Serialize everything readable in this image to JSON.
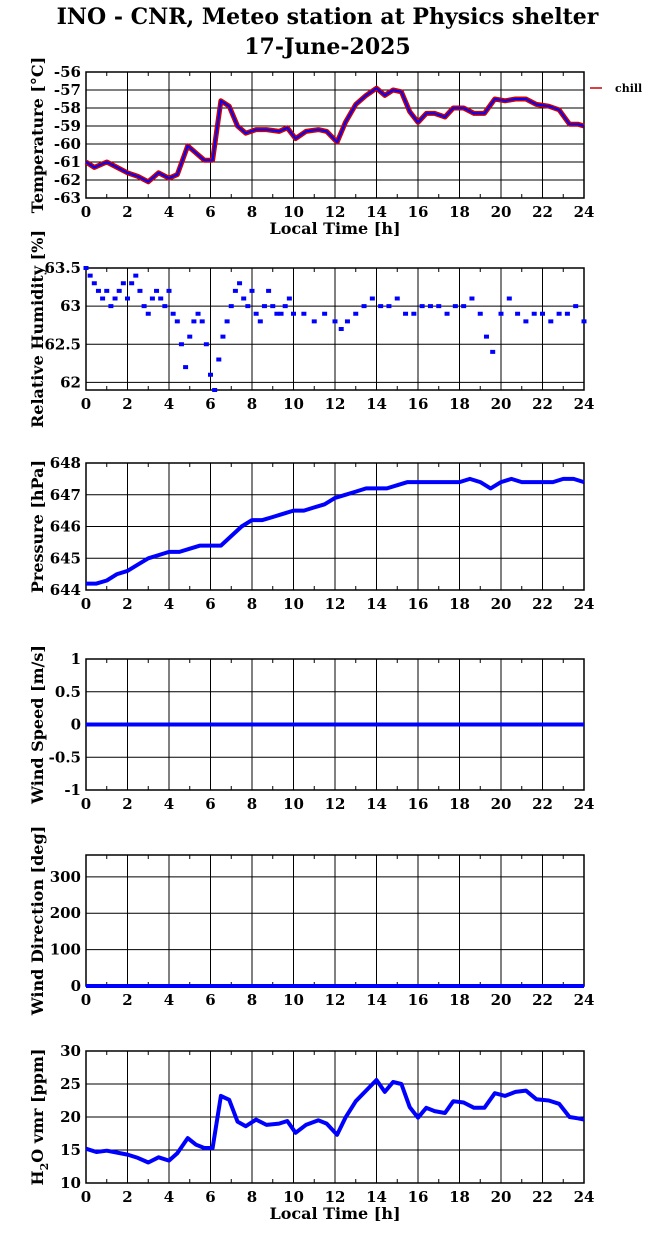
{
  "title_line1": "INO - CNR, Meteo station at Physics shelter",
  "title_line2": "17-June-2025",
  "colors": {
    "series_blue": "#0000ff",
    "series_red": "#cc0000",
    "grid": "#000000"
  },
  "chart_data": [
    {
      "type": "line",
      "ylabel": "Temperature [°C]",
      "xlabel": "Local Time [h]",
      "xlim": [
        0,
        24
      ],
      "ylim": [
        -63,
        -56
      ],
      "yticks": [
        -63,
        -62,
        -61,
        -60,
        -59,
        -58,
        -57,
        -56
      ],
      "xticks": [
        0,
        2,
        4,
        6,
        8,
        10,
        12,
        14,
        16,
        18,
        20,
        22,
        24
      ],
      "legend": [
        "chill"
      ],
      "series": [
        {
          "name": "chill",
          "color": "#cc0000",
          "style": "line",
          "x": [
            0,
            0.4,
            1,
            1.5,
            2,
            2.5,
            3,
            3.5,
            4,
            4.4,
            4.9,
            5.3,
            5.7,
            6.1,
            6.5,
            6.9,
            7.3,
            7.7,
            8.2,
            8.7,
            9.3,
            9.7,
            10.1,
            10.6,
            11.2,
            11.6,
            12.1,
            12.5,
            13,
            13.5,
            14,
            14.4,
            14.8,
            15.2,
            15.6,
            16,
            16.4,
            16.8,
            17.3,
            17.7,
            18.2,
            18.7,
            19.2,
            19.7,
            20.2,
            20.7,
            21.2,
            21.7,
            22.3,
            22.8,
            23.3,
            23.7,
            24
          ],
          "y": [
            -61,
            -61.3,
            -61,
            -61.3,
            -61.6,
            -61.8,
            -62.1,
            -61.6,
            -61.9,
            -61.7,
            -60.1,
            -60.5,
            -60.9,
            -60.9,
            -57.6,
            -57.9,
            -59,
            -59.4,
            -59.2,
            -59.2,
            -59.3,
            -59.1,
            -59.7,
            -59.3,
            -59.2,
            -59.3,
            -59.9,
            -58.8,
            -57.8,
            -57.3,
            -56.9,
            -57.3,
            -57.0,
            -57.1,
            -58.2,
            -58.8,
            -58.3,
            -58.3,
            -58.5,
            -58.0,
            -58.0,
            -58.3,
            -58.3,
            -57.5,
            -57.6,
            -57.5,
            -57.5,
            -57.8,
            -57.9,
            -58.1,
            -58.9,
            -58.9,
            -59.0
          ]
        },
        {
          "name": "",
          "color": "#0000ff",
          "style": "line",
          "x": [
            0,
            0.4,
            1,
            1.5,
            2,
            2.5,
            3,
            3.5,
            4,
            4.4,
            4.9,
            5.3,
            5.7,
            6.1,
            6.5,
            6.9,
            7.3,
            7.7,
            8.2,
            8.7,
            9.3,
            9.7,
            10.1,
            10.6,
            11.2,
            11.6,
            12.1,
            12.5,
            13,
            13.5,
            14,
            14.4,
            14.8,
            15.2,
            15.6,
            16,
            16.4,
            16.8,
            17.3,
            17.7,
            18.2,
            18.7,
            19.2,
            19.7,
            20.2,
            20.7,
            21.2,
            21.7,
            22.3,
            22.8,
            23.3,
            23.7,
            24
          ],
          "y": [
            -61,
            -61.3,
            -61,
            -61.3,
            -61.6,
            -61.8,
            -62.1,
            -61.6,
            -61.9,
            -61.7,
            -60.1,
            -60.5,
            -60.9,
            -60.9,
            -57.6,
            -57.9,
            -59,
            -59.4,
            -59.2,
            -59.2,
            -59.3,
            -59.1,
            -59.7,
            -59.3,
            -59.2,
            -59.3,
            -59.9,
            -58.8,
            -57.8,
            -57.3,
            -56.9,
            -57.3,
            -57.0,
            -57.1,
            -58.2,
            -58.8,
            -58.3,
            -58.3,
            -58.5,
            -58.0,
            -58.0,
            -58.3,
            -58.3,
            -57.5,
            -57.6,
            -57.5,
            -57.5,
            -57.8,
            -57.9,
            -58.1,
            -58.9,
            -58.9,
            -59.0
          ]
        }
      ]
    },
    {
      "type": "scatter",
      "ylabel": "Relative Humidity [%]",
      "xlabel": "",
      "xlim": [
        0,
        24
      ],
      "ylim": [
        61.9,
        63.5
      ],
      "yticks": [
        62,
        62.5,
        63,
        63.5
      ],
      "xticks": [
        0,
        2,
        4,
        6,
        8,
        10,
        12,
        14,
        16,
        18,
        20,
        22,
        24
      ],
      "series": [
        {
          "name": "",
          "color": "#0000ff",
          "style": "points",
          "x": [
            0,
            0.2,
            0.4,
            0.6,
            0.8,
            1.0,
            1.2,
            1.4,
            1.6,
            1.8,
            2.0,
            2.2,
            2.4,
            2.6,
            2.8,
            3.0,
            3.2,
            3.4,
            3.6,
            3.8,
            4.0,
            4.2,
            4.4,
            4.6,
            4.8,
            5.0,
            5.2,
            5.4,
            5.6,
            5.8,
            6.0,
            6.2,
            6.4,
            6.6,
            6.8,
            7.0,
            7.2,
            7.4,
            7.6,
            7.8,
            8.0,
            8.2,
            8.4,
            8.6,
            8.8,
            9.0,
            9.2,
            9.4,
            9.6,
            9.8,
            10.0,
            10.5,
            11.0,
            11.5,
            12.0,
            12.3,
            12.6,
            13.0,
            13.4,
            13.8,
            14.2,
            14.6,
            15.0,
            15.4,
            15.8,
            16.2,
            16.6,
            17.0,
            17.4,
            17.8,
            18.2,
            18.6,
            19.0,
            19.3,
            19.6,
            20.0,
            20.4,
            20.8,
            21.2,
            21.6,
            22.0,
            22.4,
            22.8,
            23.2,
            23.6,
            24.0
          ],
          "y": [
            63.5,
            63.4,
            63.3,
            63.2,
            63.1,
            63.2,
            63.0,
            63.1,
            63.2,
            63.3,
            63.1,
            63.3,
            63.4,
            63.2,
            63.0,
            62.9,
            63.1,
            63.2,
            63.1,
            63.0,
            63.2,
            62.9,
            62.8,
            62.5,
            62.2,
            62.6,
            62.8,
            62.9,
            62.8,
            62.5,
            62.1,
            61.9,
            62.3,
            62.6,
            62.8,
            63.0,
            63.2,
            63.3,
            63.1,
            63.0,
            63.2,
            62.9,
            62.8,
            63.0,
            63.2,
            63.0,
            62.9,
            62.9,
            63.0,
            63.1,
            62.9,
            62.9,
            62.8,
            62.9,
            62.8,
            62.7,
            62.8,
            62.9,
            63.0,
            63.1,
            63.0,
            63.0,
            63.1,
            62.9,
            62.9,
            63.0,
            63.0,
            63.0,
            62.9,
            63.0,
            63.0,
            63.1,
            62.9,
            62.6,
            62.4,
            62.9,
            63.1,
            62.9,
            62.8,
            62.9,
            62.9,
            62.8,
            62.9,
            62.9,
            63.0,
            62.8
          ]
        }
      ]
    },
    {
      "type": "line",
      "ylabel": "Pressure [hPa]",
      "xlabel": "",
      "xlim": [
        0,
        24
      ],
      "ylim": [
        644,
        648
      ],
      "yticks": [
        644,
        645,
        646,
        647,
        648
      ],
      "xticks": [
        0,
        2,
        4,
        6,
        8,
        10,
        12,
        14,
        16,
        18,
        20,
        22,
        24
      ],
      "series": [
        {
          "name": "",
          "color": "#0000ff",
          "style": "line",
          "x": [
            0,
            0.5,
            1,
            1.5,
            2,
            2.5,
            3,
            3.5,
            4,
            4.5,
            5,
            5.5,
            6,
            6.5,
            7,
            7.5,
            8,
            8.5,
            9,
            9.5,
            10,
            10.5,
            11,
            11.5,
            12,
            12.5,
            13,
            13.5,
            14,
            14.5,
            15,
            15.5,
            16,
            16.5,
            17,
            17.5,
            18,
            18.5,
            19,
            19.5,
            20,
            20.5,
            21,
            21.5,
            22,
            22.5,
            23,
            23.5,
            24
          ],
          "y": [
            644.2,
            644.2,
            644.3,
            644.5,
            644.6,
            644.8,
            645.0,
            645.1,
            645.2,
            645.2,
            645.3,
            645.4,
            645.4,
            645.4,
            645.7,
            646.0,
            646.2,
            646.2,
            646.3,
            646.4,
            646.5,
            646.5,
            646.6,
            646.7,
            646.9,
            647.0,
            647.1,
            647.2,
            647.2,
            647.2,
            647.3,
            647.4,
            647.4,
            647.4,
            647.4,
            647.4,
            647.4,
            647.5,
            647.4,
            647.2,
            647.4,
            647.5,
            647.4,
            647.4,
            647.4,
            647.4,
            647.5,
            647.5,
            647.4
          ]
        }
      ]
    },
    {
      "type": "line",
      "ylabel": "Wind Speed [m/s]",
      "xlabel": "",
      "xlim": [
        0,
        24
      ],
      "ylim": [
        -1,
        1
      ],
      "yticks": [
        -1,
        -0.5,
        0,
        0.5,
        1
      ],
      "xticks": [
        0,
        2,
        4,
        6,
        8,
        10,
        12,
        14,
        16,
        18,
        20,
        22,
        24
      ],
      "series": [
        {
          "name": "",
          "color": "#0000ff",
          "style": "line",
          "x": [
            0,
            24
          ],
          "y": [
            0,
            0
          ]
        }
      ]
    },
    {
      "type": "line",
      "ylabel": "Wind Direction [deg]",
      "xlabel": "",
      "xlim": [
        0,
        24
      ],
      "ylim": [
        0,
        360
      ],
      "yticks": [
        0,
        100,
        200,
        300
      ],
      "xticks": [
        0,
        2,
        4,
        6,
        8,
        10,
        12,
        14,
        16,
        18,
        20,
        22,
        24
      ],
      "series": [
        {
          "name": "",
          "color": "#0000ff",
          "style": "line",
          "x": [
            0,
            24
          ],
          "y": [
            0,
            0
          ]
        }
      ]
    },
    {
      "type": "line",
      "ylabel_main": "H",
      "ylabel_sub": "2",
      "ylabel_rest": "O vmr [ppm]",
      "xlabel": "Local Time [h]",
      "xlim": [
        0,
        24
      ],
      "ylim": [
        10,
        30
      ],
      "yticks": [
        10,
        15,
        20,
        25,
        30
      ],
      "xticks": [
        0,
        2,
        4,
        6,
        8,
        10,
        12,
        14,
        16,
        18,
        20,
        22,
        24
      ],
      "series": [
        {
          "name": "",
          "color": "#0000ff",
          "style": "line",
          "x": [
            0,
            0.5,
            1,
            1.5,
            2,
            2.5,
            3,
            3.5,
            4,
            4.4,
            4.9,
            5.3,
            5.7,
            6.1,
            6.5,
            6.9,
            7.3,
            7.7,
            8.2,
            8.7,
            9.3,
            9.7,
            10.1,
            10.6,
            11.2,
            11.6,
            12.1,
            12.5,
            13,
            13.5,
            14,
            14.4,
            14.8,
            15.2,
            15.6,
            16,
            16.4,
            16.8,
            17.3,
            17.7,
            18.2,
            18.7,
            19.2,
            19.7,
            20.2,
            20.7,
            21.2,
            21.7,
            22.3,
            22.8,
            23.3,
            23.7,
            24
          ],
          "y": [
            15.2,
            14.7,
            14.9,
            14.6,
            14.3,
            13.8,
            13.1,
            13.9,
            13.4,
            14.5,
            16.8,
            15.8,
            15.3,
            15.3,
            23.2,
            22.6,
            19.3,
            18.6,
            19.6,
            18.8,
            19.0,
            19.4,
            17.6,
            18.8,
            19.5,
            19.0,
            17.3,
            19.9,
            22.4,
            24.0,
            25.6,
            23.8,
            25.3,
            25.0,
            21.5,
            19.9,
            21.4,
            20.9,
            20.6,
            22.4,
            22.2,
            21.4,
            21.4,
            23.6,
            23.2,
            23.8,
            24.0,
            22.7,
            22.5,
            22.0,
            20.0,
            19.8,
            19.6
          ]
        }
      ]
    }
  ]
}
